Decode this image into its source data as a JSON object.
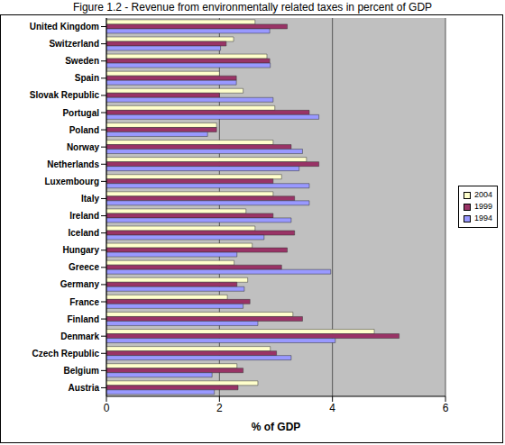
{
  "chart_data": {
    "type": "bar",
    "title": "Figure 1.2 - Revenue from environmentally related taxes in percent of GDP",
    "x_label": "% of GDP",
    "orientation": "horizontal",
    "grid": true,
    "legend": "right",
    "xlim": [
      0,
      6
    ],
    "xticks": [
      0,
      2,
      4,
      6
    ],
    "categories": [
      "United Kingdom",
      "Switzerland",
      "Sweden",
      "Spain",
      "Slovak Republic",
      "Portugal",
      "Poland",
      "Norway",
      "Netherlands",
      "Luxembourg",
      "Italy",
      "Ireland",
      "Iceland",
      "Hungary",
      "Greece",
      "Germany",
      "France",
      "Finland",
      "Denmark",
      "Czech Republic",
      "Belgium",
      "Austria"
    ],
    "series": [
      {
        "name": "2004",
        "color": "#FFFFCC",
        "values": [
          2.63,
          2.25,
          2.84,
          2.0,
          2.42,
          2.98,
          1.95,
          2.95,
          3.54,
          3.1,
          2.95,
          2.47,
          2.63,
          2.58,
          2.26,
          2.5,
          2.14,
          3.3,
          4.74,
          2.9,
          2.31,
          2.68
        ]
      },
      {
        "name": "1999",
        "color": "#993366",
        "values": [
          3.2,
          2.12,
          2.89,
          2.3,
          2.0,
          3.59,
          1.95,
          3.27,
          3.76,
          2.95,
          3.33,
          2.95,
          3.33,
          3.2,
          3.1,
          2.31,
          2.54,
          3.47,
          5.18,
          3.01,
          2.42,
          2.33
        ]
      },
      {
        "name": "1994",
        "color": "#9999FF",
        "values": [
          2.89,
          2.02,
          2.9,
          2.3,
          2.95,
          3.76,
          1.79,
          3.47,
          3.41,
          3.59,
          3.59,
          3.27,
          2.79,
          2.31,
          3.97,
          2.44,
          2.42,
          2.68,
          4.05,
          3.27,
          1.87,
          1.91
        ]
      }
    ]
  }
}
